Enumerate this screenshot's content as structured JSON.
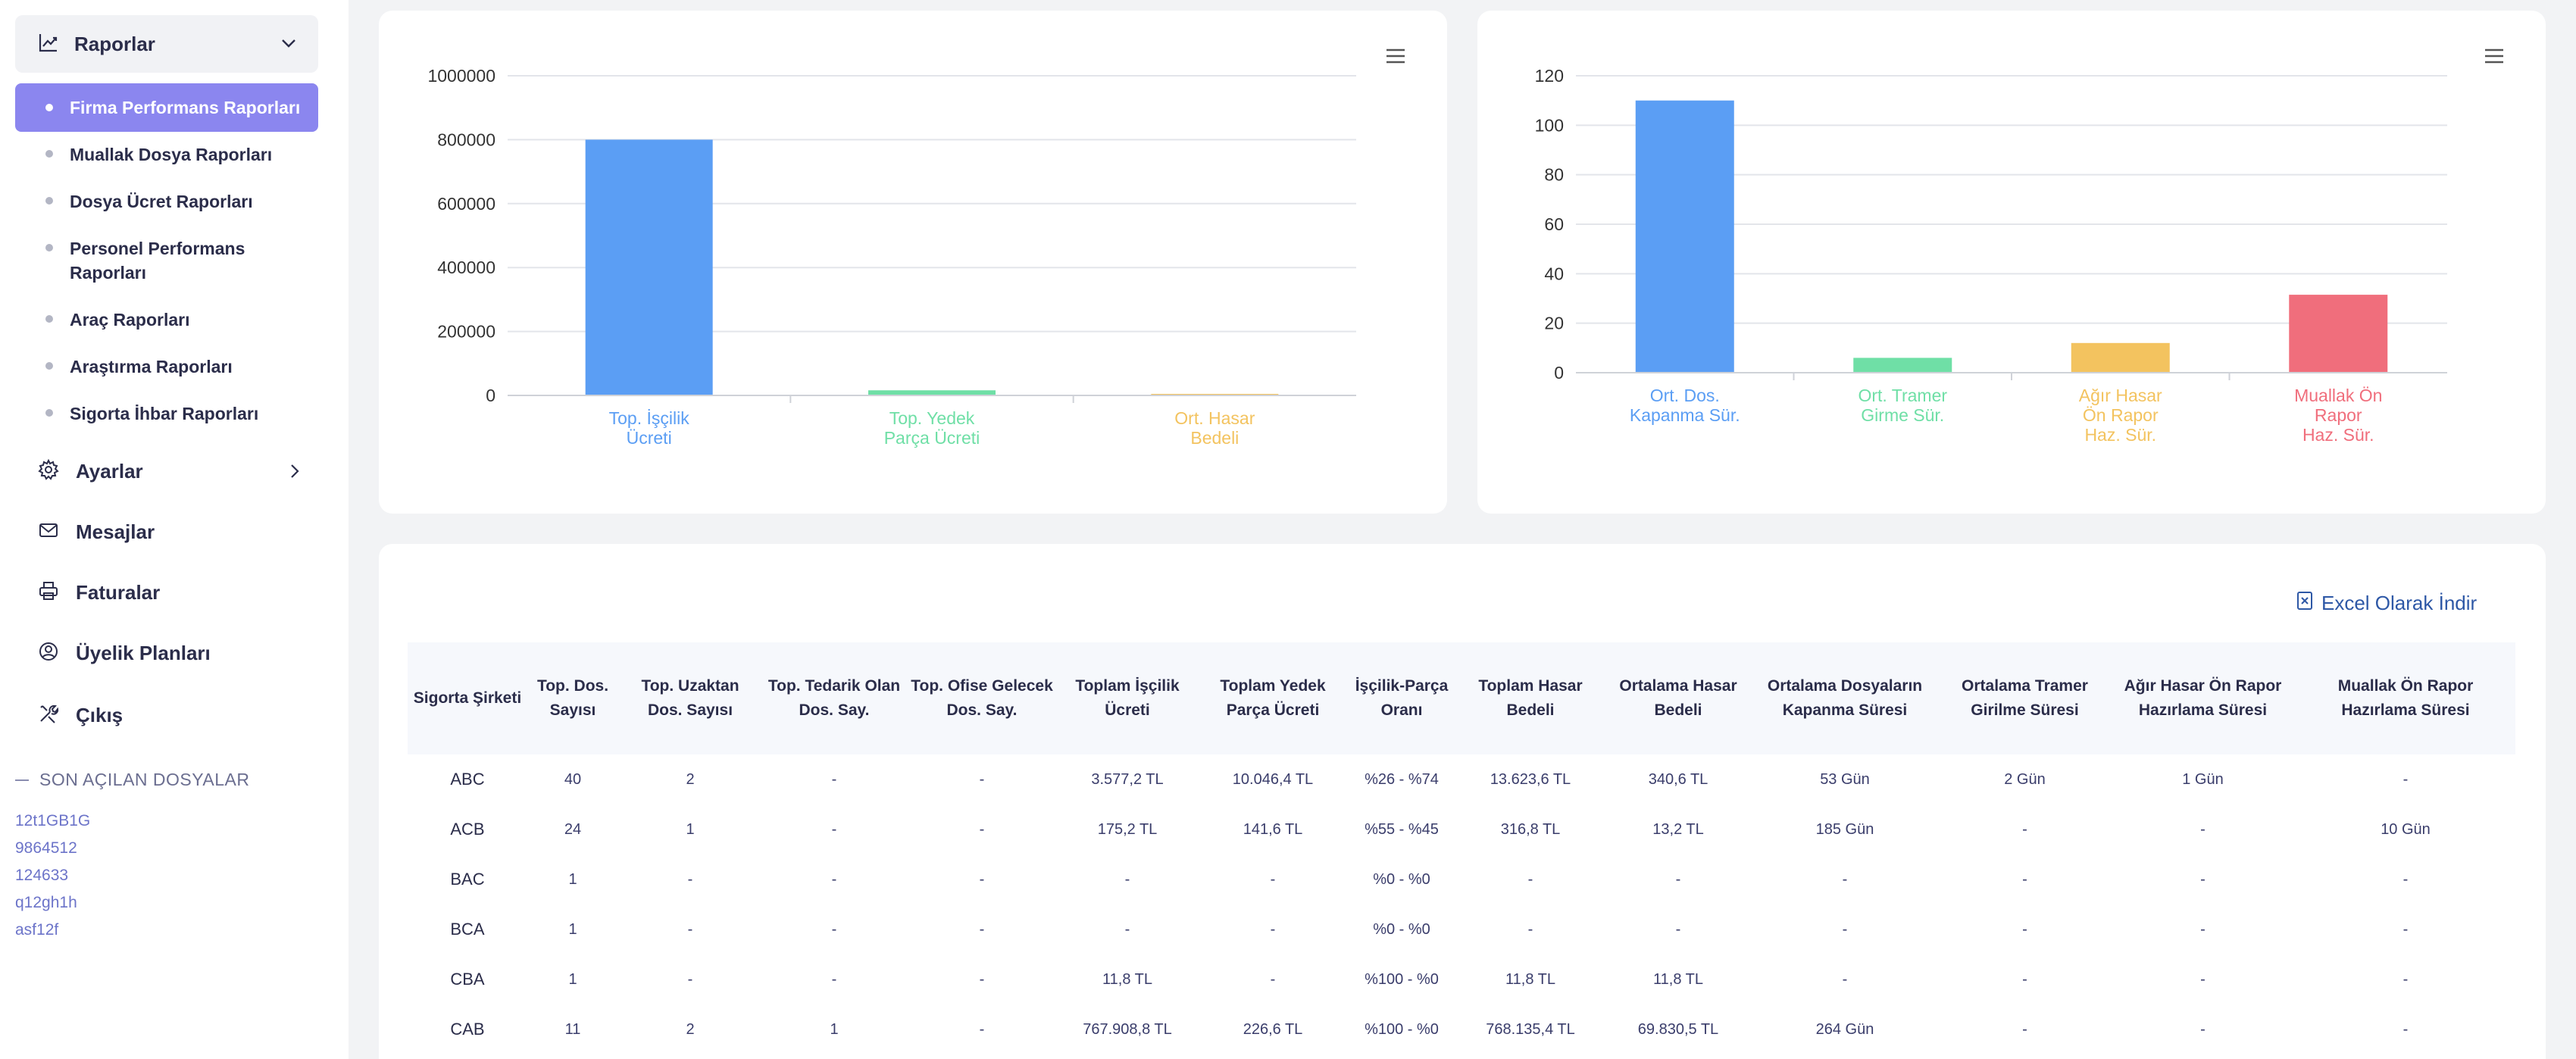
{
  "sidebar": {
    "reports_label": "Raporlar",
    "sub_items": [
      {
        "label": "Firma Performans Raporları"
      },
      {
        "label": "Muallak Dosya Raporları"
      },
      {
        "label": "Dosya Ücret Raporları"
      },
      {
        "label": "Personel Performans Raporları"
      },
      {
        "label": "Araç Raporları"
      },
      {
        "label": "Araştırma Raporları"
      },
      {
        "label": "Sigorta İhbar Raporları"
      }
    ],
    "main_items": [
      {
        "label": "Ayarlar",
        "icon": "gear-icon"
      },
      {
        "label": "Mesajlar",
        "icon": "mail-icon"
      },
      {
        "label": "Faturalar",
        "icon": "printer-icon"
      },
      {
        "label": "Üyelik Planları",
        "icon": "user-circle-icon"
      },
      {
        "label": "Çıkış",
        "icon": "tools-icon"
      }
    ],
    "recent_title": "SON AÇILAN DOSYALAR",
    "recent_files": [
      "12t1GB1G",
      "9864512",
      "124633",
      "q12gh1h",
      "asf12f"
    ]
  },
  "charts": {
    "chart_data": [
      {
        "type": "bar",
        "categories": [
          [
            "Top. İşçilik",
            "Ücreti"
          ],
          [
            "Top. Yedek",
            "Parça Ücreti"
          ],
          [
            "Ort. Hasar",
            "Bedeli"
          ]
        ],
        "values": [
          800000,
          16000,
          1800
        ],
        "colors": [
          "#5b9ef4",
          "#6fdfa6",
          "#f3c35f"
        ],
        "yticks": [
          "0",
          "200000",
          "400000",
          "600000",
          "800000",
          "1000000"
        ],
        "ylim": [
          0,
          1000000
        ]
      },
      {
        "type": "bar",
        "categories": [
          [
            "Ort. Dos.",
            "Kapanma Sür."
          ],
          [
            "Ort. Tramer",
            "Girme Sür."
          ],
          [
            "Ağır Hasar",
            "Ön Rapor",
            "Haz. Sür."
          ],
          [
            "Muallak Ön",
            "Rapor",
            "Haz. Sür."
          ]
        ],
        "values": [
          110,
          6,
          12,
          31.5
        ],
        "colors": [
          "#5b9ef4",
          "#6fdfa6",
          "#f3c35f",
          "#f06e7c"
        ],
        "yticks": [
          "0",
          "20",
          "40",
          "60",
          "80",
          "100",
          "120"
        ],
        "ylim": [
          0,
          120
        ]
      }
    ]
  },
  "table": {
    "excel_label": "Excel Olarak İndir",
    "headers": [
      "Sigorta Şirketi",
      "Top. Dos. Sayısı",
      "Top. Uzaktan Dos. Sayısı",
      "Top. Tedarik Olan Dos. Say.",
      "Top. Ofise Gelecek Dos. Say.",
      "Toplam İşçilik Ücreti",
      "Toplam Yedek Parça Ücreti",
      "İşçilik-Parça Oranı",
      "Toplam Hasar Bedeli",
      "Ortalama Hasar Bedeli",
      "Ortalama Dosyaların Kapanma Süresi",
      "Ortalama Tramer Girilme Süresi",
      "Ağır Hasar Ön Rapor Hazırlama Süresi",
      "Muallak Ön Rapor Hazırlama Süresi"
    ],
    "rows": [
      [
        "ABC",
        "40",
        "2",
        "-",
        "-",
        "3.577,2 TL",
        "10.046,4 TL",
        "%26 - %74",
        "13.623,6 TL",
        "340,6 TL",
        "53 Gün",
        "2 Gün",
        "1 Gün",
        "-"
      ],
      [
        "ACB",
        "24",
        "1",
        "-",
        "-",
        "175,2 TL",
        "141,6 TL",
        "%55 - %45",
        "316,8 TL",
        "13,2 TL",
        "185 Gün",
        "-",
        "-",
        "10 Gün"
      ],
      [
        "BAC",
        "1",
        "-",
        "-",
        "-",
        "-",
        "-",
        "%0 - %0",
        "-",
        "-",
        "-",
        "-",
        "-",
        "-"
      ],
      [
        "BCA",
        "1",
        "-",
        "-",
        "-",
        "-",
        "-",
        "%0 - %0",
        "-",
        "-",
        "-",
        "-",
        "-",
        "-"
      ],
      [
        "CBA",
        "1",
        "-",
        "-",
        "-",
        "11,8 TL",
        "-",
        "%100 - %0",
        "11,8 TL",
        "11,8 TL",
        "-",
        "-",
        "-",
        "-"
      ],
      [
        "CAB",
        "11",
        "2",
        "1",
        "-",
        "767.908,8 TL",
        "226,6 TL",
        "%100 - %0",
        "768.135,4 TL",
        "69.830,5 TL",
        "264 Gün",
        "-",
        "-",
        "-"
      ]
    ]
  }
}
